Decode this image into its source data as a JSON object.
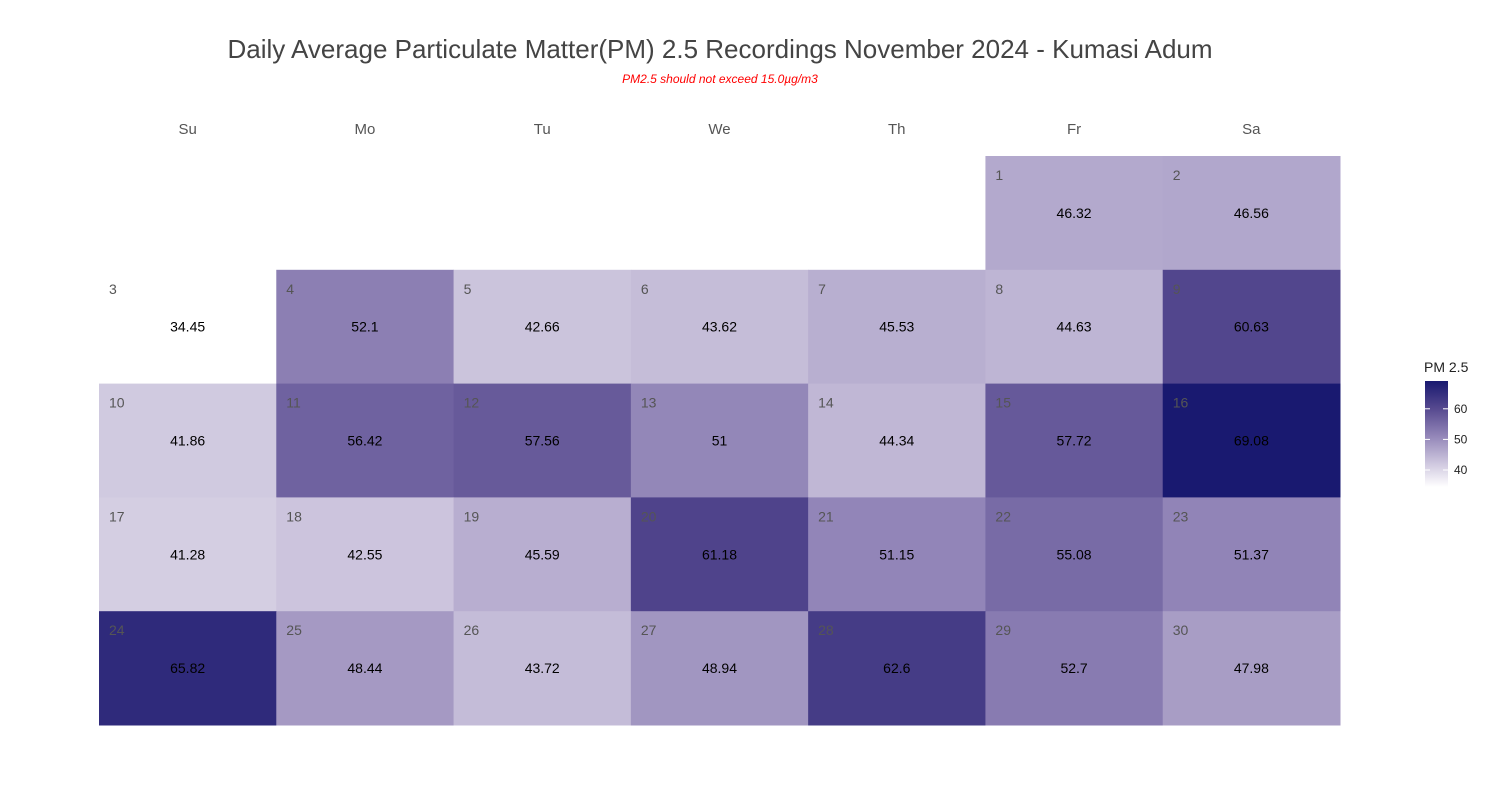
{
  "chart_data": {
    "type": "heatmap",
    "title": "Daily Average Particulate Matter(PM) 2.5 Recordings November 2024 -  Kumasi Adum",
    "subtitle": "PM2.5 should not exceed 15.0µg/m3",
    "weekdays": [
      "Su",
      "Mo",
      "Tu",
      "We",
      "Th",
      "Fr",
      "Sa"
    ],
    "first_weekday_index": 5,
    "days": [
      1,
      2,
      3,
      4,
      5,
      6,
      7,
      8,
      9,
      10,
      11,
      12,
      13,
      14,
      15,
      16,
      17,
      18,
      19,
      20,
      21,
      22,
      23,
      24,
      25,
      26,
      27,
      28,
      29,
      30
    ],
    "values": [
      "46.32",
      "46.56",
      "34.45",
      "52.1",
      "42.66",
      "43.62",
      "45.53",
      "44.63",
      "60.63",
      "41.86",
      "56.42",
      "57.56",
      "51",
      "44.34",
      "57.72",
      "69.08",
      "41.28",
      "42.55",
      "45.59",
      "61.18",
      "51.15",
      "55.08",
      "51.37",
      "65.82",
      "48.44",
      "43.72",
      "48.94",
      "62.6",
      "52.7",
      "47.98"
    ],
    "legend": {
      "title": "PM 2.5",
      "ticks": [
        "40",
        "50",
        "60"
      ],
      "range": [
        34.45,
        69.08
      ],
      "low_color": "#ffffff",
      "high_color": "#191970",
      "placement": "right"
    }
  }
}
